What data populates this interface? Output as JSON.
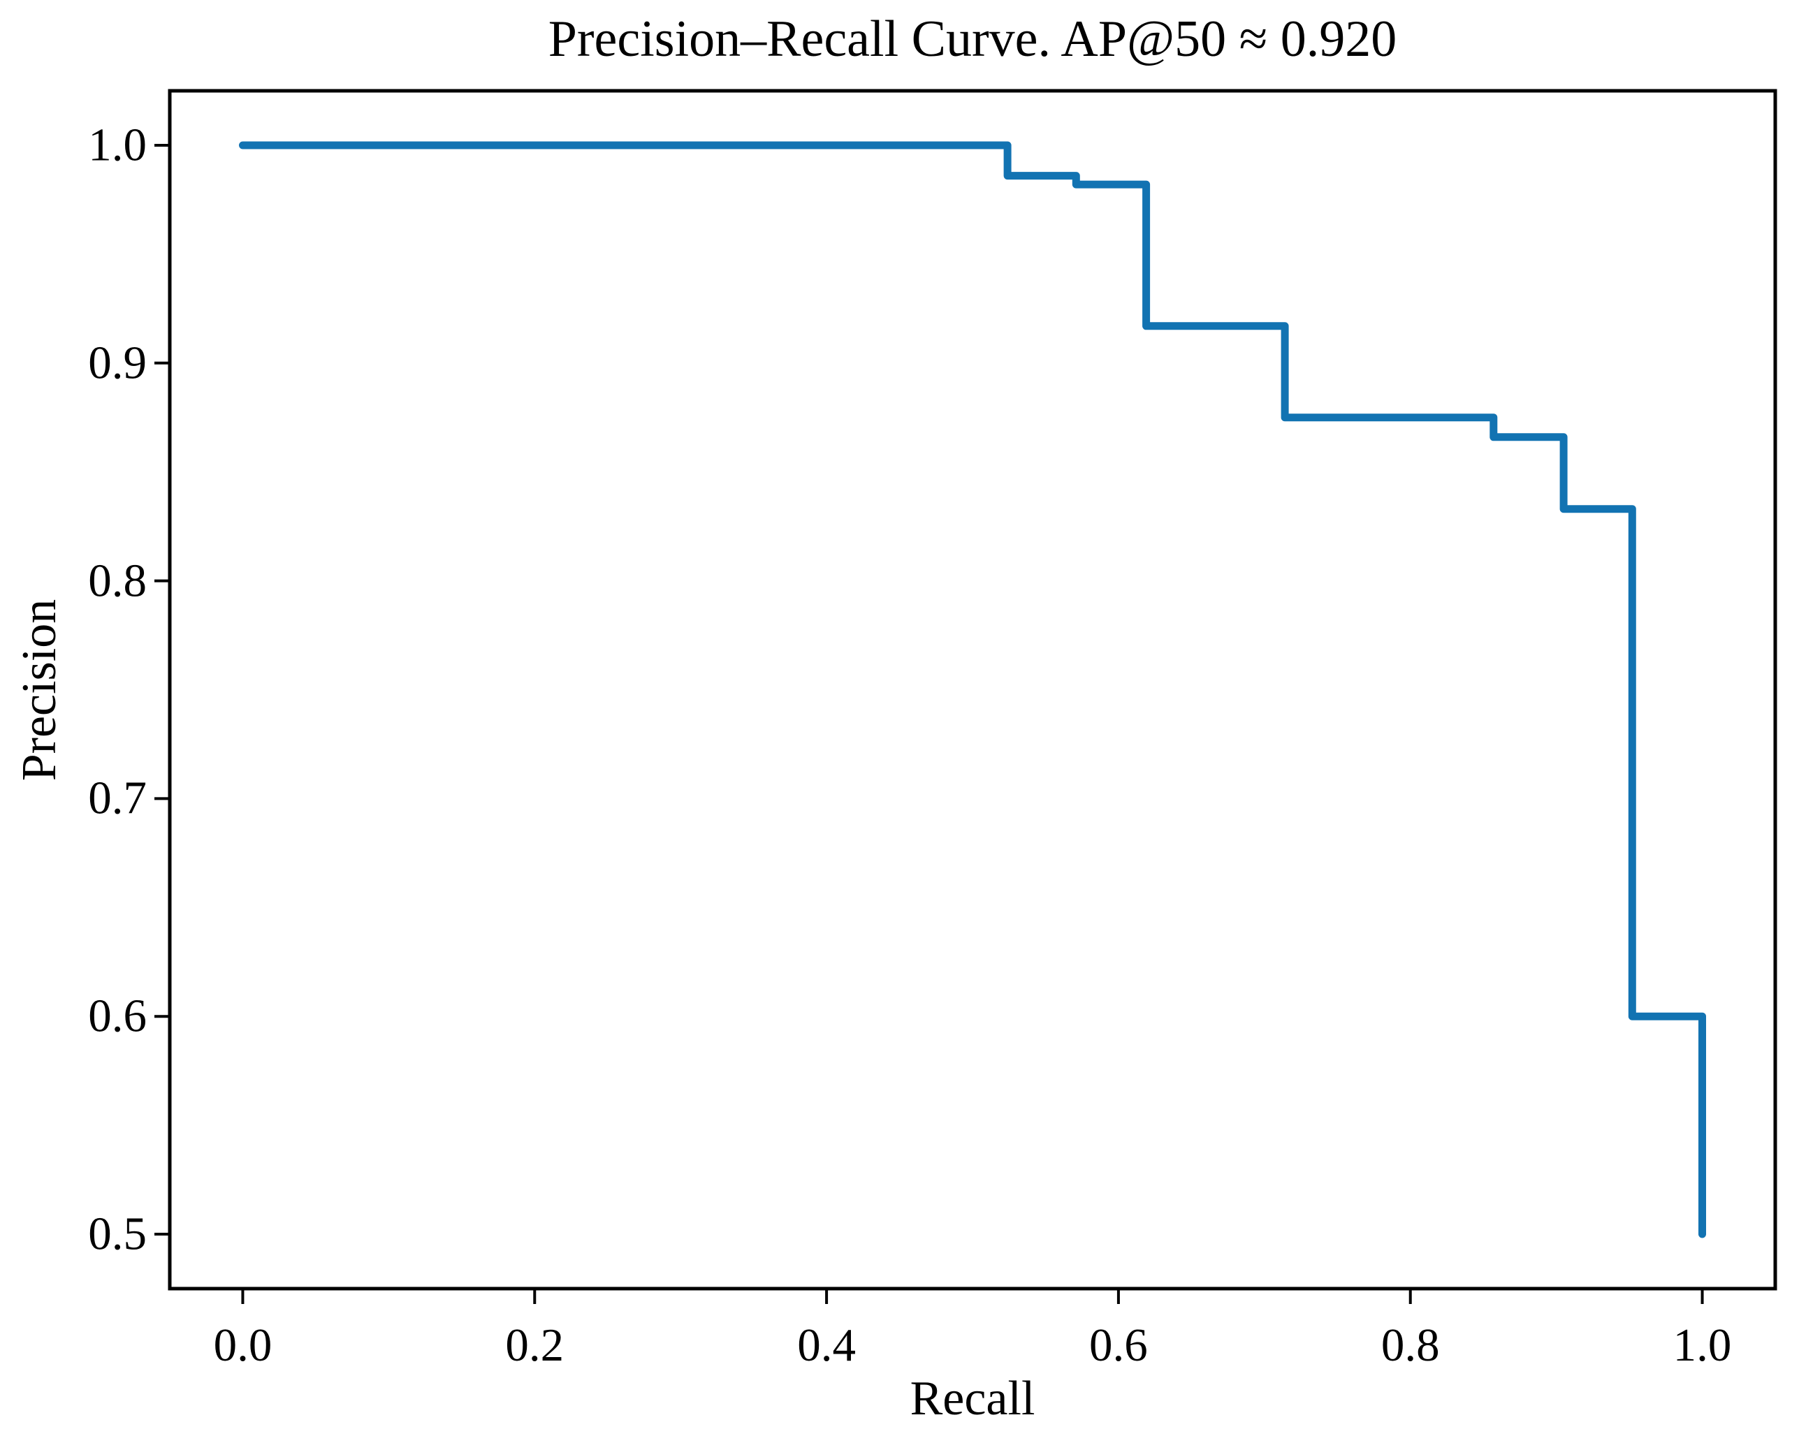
{
  "chart_data": {
    "type": "line",
    "title": "Precision–Recall Curve. AP@50 ≈ 0.920",
    "xlabel": "Recall",
    "ylabel": "Precision",
    "ap_at_50": 0.92,
    "xlim": [
      -0.05,
      1.05
    ],
    "ylim": [
      0.475,
      1.025
    ],
    "x_ticks": [
      0.0,
      0.2,
      0.4,
      0.6,
      0.8,
      1.0
    ],
    "x_tick_labels": [
      "0.0",
      "0.2",
      "0.4",
      "0.6",
      "0.8",
      "1.0"
    ],
    "y_ticks": [
      0.5,
      0.6,
      0.7,
      0.8,
      0.9,
      1.0
    ],
    "y_tick_labels": [
      "0.5",
      "0.6",
      "0.7",
      "0.8",
      "0.9",
      "1.0"
    ],
    "grid": false,
    "legend_position": "none",
    "line_color": "#1273b2",
    "frame_color": "#000000",
    "series": [
      {
        "name": "precision-recall-curve",
        "drawstyle": "steps",
        "points": [
          [
            0.0,
            1.0
          ],
          [
            0.524,
            1.0
          ],
          [
            0.524,
            0.986
          ],
          [
            0.571,
            0.986
          ],
          [
            0.571,
            0.982
          ],
          [
            0.619,
            0.982
          ],
          [
            0.619,
            0.917
          ],
          [
            0.714,
            0.917
          ],
          [
            0.714,
            0.875
          ],
          [
            0.857,
            0.875
          ],
          [
            0.857,
            0.866
          ],
          [
            0.905,
            0.866
          ],
          [
            0.905,
            0.833
          ],
          [
            0.952,
            0.833
          ],
          [
            0.952,
            0.6
          ],
          [
            1.0,
            0.6
          ],
          [
            1.0,
            0.5
          ]
        ]
      }
    ]
  },
  "layout_note_visible_text_only": true
}
